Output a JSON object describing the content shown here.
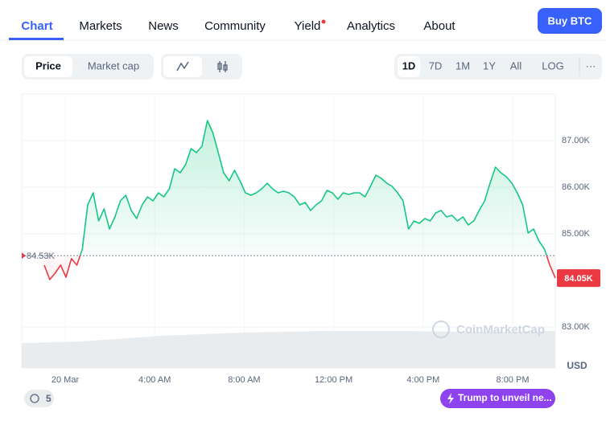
{
  "nav": {
    "tabs": [
      "Chart",
      "Markets",
      "News",
      "Community",
      "Yield",
      "Analytics",
      "About"
    ],
    "buy_button": "Buy BTC"
  },
  "toolbar": {
    "modes": [
      "Price",
      "Market cap"
    ],
    "ranges": [
      "1D",
      "7D",
      "1M",
      "1Y",
      "All"
    ],
    "log": "LOG",
    "more": "···"
  },
  "chart_data": {
    "type": "line",
    "xticks": [
      "20 Mar",
      "4:00 AM",
      "8:00 AM",
      "12:00 PM",
      "4:00 PM",
      "8:00 PM"
    ],
    "ylim": [
      82120,
      88000
    ],
    "yticks": [
      {
        "value": 83000,
        "label": "83.00K"
      },
      {
        "value": 85000,
        "label": "85.00K"
      },
      {
        "value": 86000,
        "label": "86.00K"
      },
      {
        "value": 87000,
        "label": "87.00K"
      }
    ],
    "values": [
      84328,
      84017,
      84155,
      84328,
      84069,
      84466,
      84328,
      84672,
      85621,
      85879,
      85276,
      85534,
      85103,
      85362,
      85707,
      85828,
      85500,
      85328,
      85621,
      85793,
      85707,
      85879,
      85793,
      85966,
      86397,
      86310,
      86483,
      86828,
      86741,
      86879,
      87431,
      87172,
      86741,
      86310,
      86138,
      86362,
      86138,
      85879,
      85828,
      85879,
      85966,
      86086,
      85966,
      85879,
      85914,
      85879,
      85793,
      85621,
      85672,
      85500,
      85621,
      85707,
      85931,
      85879,
      85741,
      85879,
      85845,
      85879,
      85879,
      85793,
      86017,
      86259,
      86190,
      86086,
      86017,
      85879,
      85707,
      85103,
      85276,
      85224,
      85328,
      85276,
      85448,
      85500,
      85362,
      85397,
      85276,
      85362,
      85190,
      85276,
      85500,
      85707,
      86086,
      86431,
      86310,
      86224,
      86086,
      85879,
      85621,
      85017,
      85103,
      84845,
      84672,
      84328,
      84050
    ],
    "color": "#16c784",
    "down_color": "#ea3943",
    "baseline": {
      "value": 84530,
      "label": "84.53K"
    },
    "current": {
      "value": 84050,
      "label": "84.05K"
    },
    "currency": "USD",
    "watermark": "CoinMarketCap"
  },
  "footer": {
    "history_count": 5,
    "news": "Trump to unveil ne..."
  }
}
